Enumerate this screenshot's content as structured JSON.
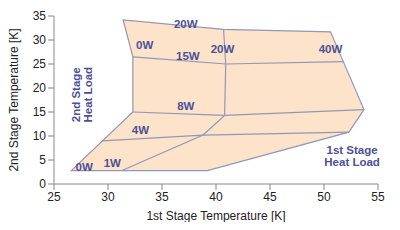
{
  "chart_data": {
    "type": "capacity_map",
    "xlabel": "1st Stage Temperature [K]",
    "ylabel": "2nd Stage Temperature [K]",
    "xlim": [
      25,
      55
    ],
    "xticks": [
      25,
      30,
      35,
      40,
      45,
      50,
      55
    ],
    "ylim": [
      0,
      35
    ],
    "yticks": [
      0,
      5,
      10,
      15,
      20,
      25,
      30,
      35
    ],
    "grid": false,
    "color": "#fde3c9",
    "boundary": {
      "x": [
        26.6,
        31.3,
        39.2,
        52.3,
        53.7,
        50.6,
        40.7,
        31.4,
        32.3,
        32.3
      ],
      "y": [
        2.8,
        2.8,
        2.8,
        10.8,
        15.5,
        31.7,
        32.2,
        34.2,
        26.5,
        15.0
      ]
    },
    "load_lines": [
      {
        "x": [
          40.7,
          40.9,
          40.8,
          38.8,
          31.3
        ],
        "y": [
          32.2,
          25.0,
          14.3,
          10.2,
          2.8
        ]
      },
      {
        "x": [
          29.5,
          38.8,
          52.3
        ],
        "y": [
          9.0,
          10.2,
          10.8
        ]
      },
      {
        "x": [
          32.3,
          40.8,
          53.7
        ],
        "y": [
          15.0,
          14.3,
          15.5
        ]
      },
      {
        "x": [
          32.3,
          40.9,
          51.8
        ],
        "y": [
          26.5,
          25.0,
          25.5
        ]
      }
    ],
    "annotations": [
      {
        "text": [
          "20W"
        ],
        "x": 37.2,
        "y": 33.3
      },
      {
        "text": [
          "0W"
        ],
        "x": 33.4,
        "y": 29.0
      },
      {
        "text": [
          "15W"
        ],
        "x": 37.4,
        "y": 26.6
      },
      {
        "text": [
          "20W"
        ],
        "x": 40.6,
        "y": 28.2
      },
      {
        "text": [
          "40W"
        ],
        "x": 50.6,
        "y": 28.2
      },
      {
        "text": [
          "8W"
        ],
        "x": 37.2,
        "y": 16.3
      },
      {
        "text": [
          "4W"
        ],
        "x": 33.0,
        "y": 11.3
      },
      {
        "text": [
          "1W"
        ],
        "x": 30.4,
        "y": 4.3
      },
      {
        "text": [
          "0W"
        ],
        "x": 27.8,
        "y": 3.6
      },
      {
        "text": [
          "2nd Stage",
          "Heat Load"
        ],
        "x": 27.6,
        "y": 18.6,
        "orientation": "vertical"
      },
      {
        "text": [
          "1st Stage",
          "Heat Load"
        ],
        "x": 52.6,
        "y": 5.8
      }
    ]
  }
}
